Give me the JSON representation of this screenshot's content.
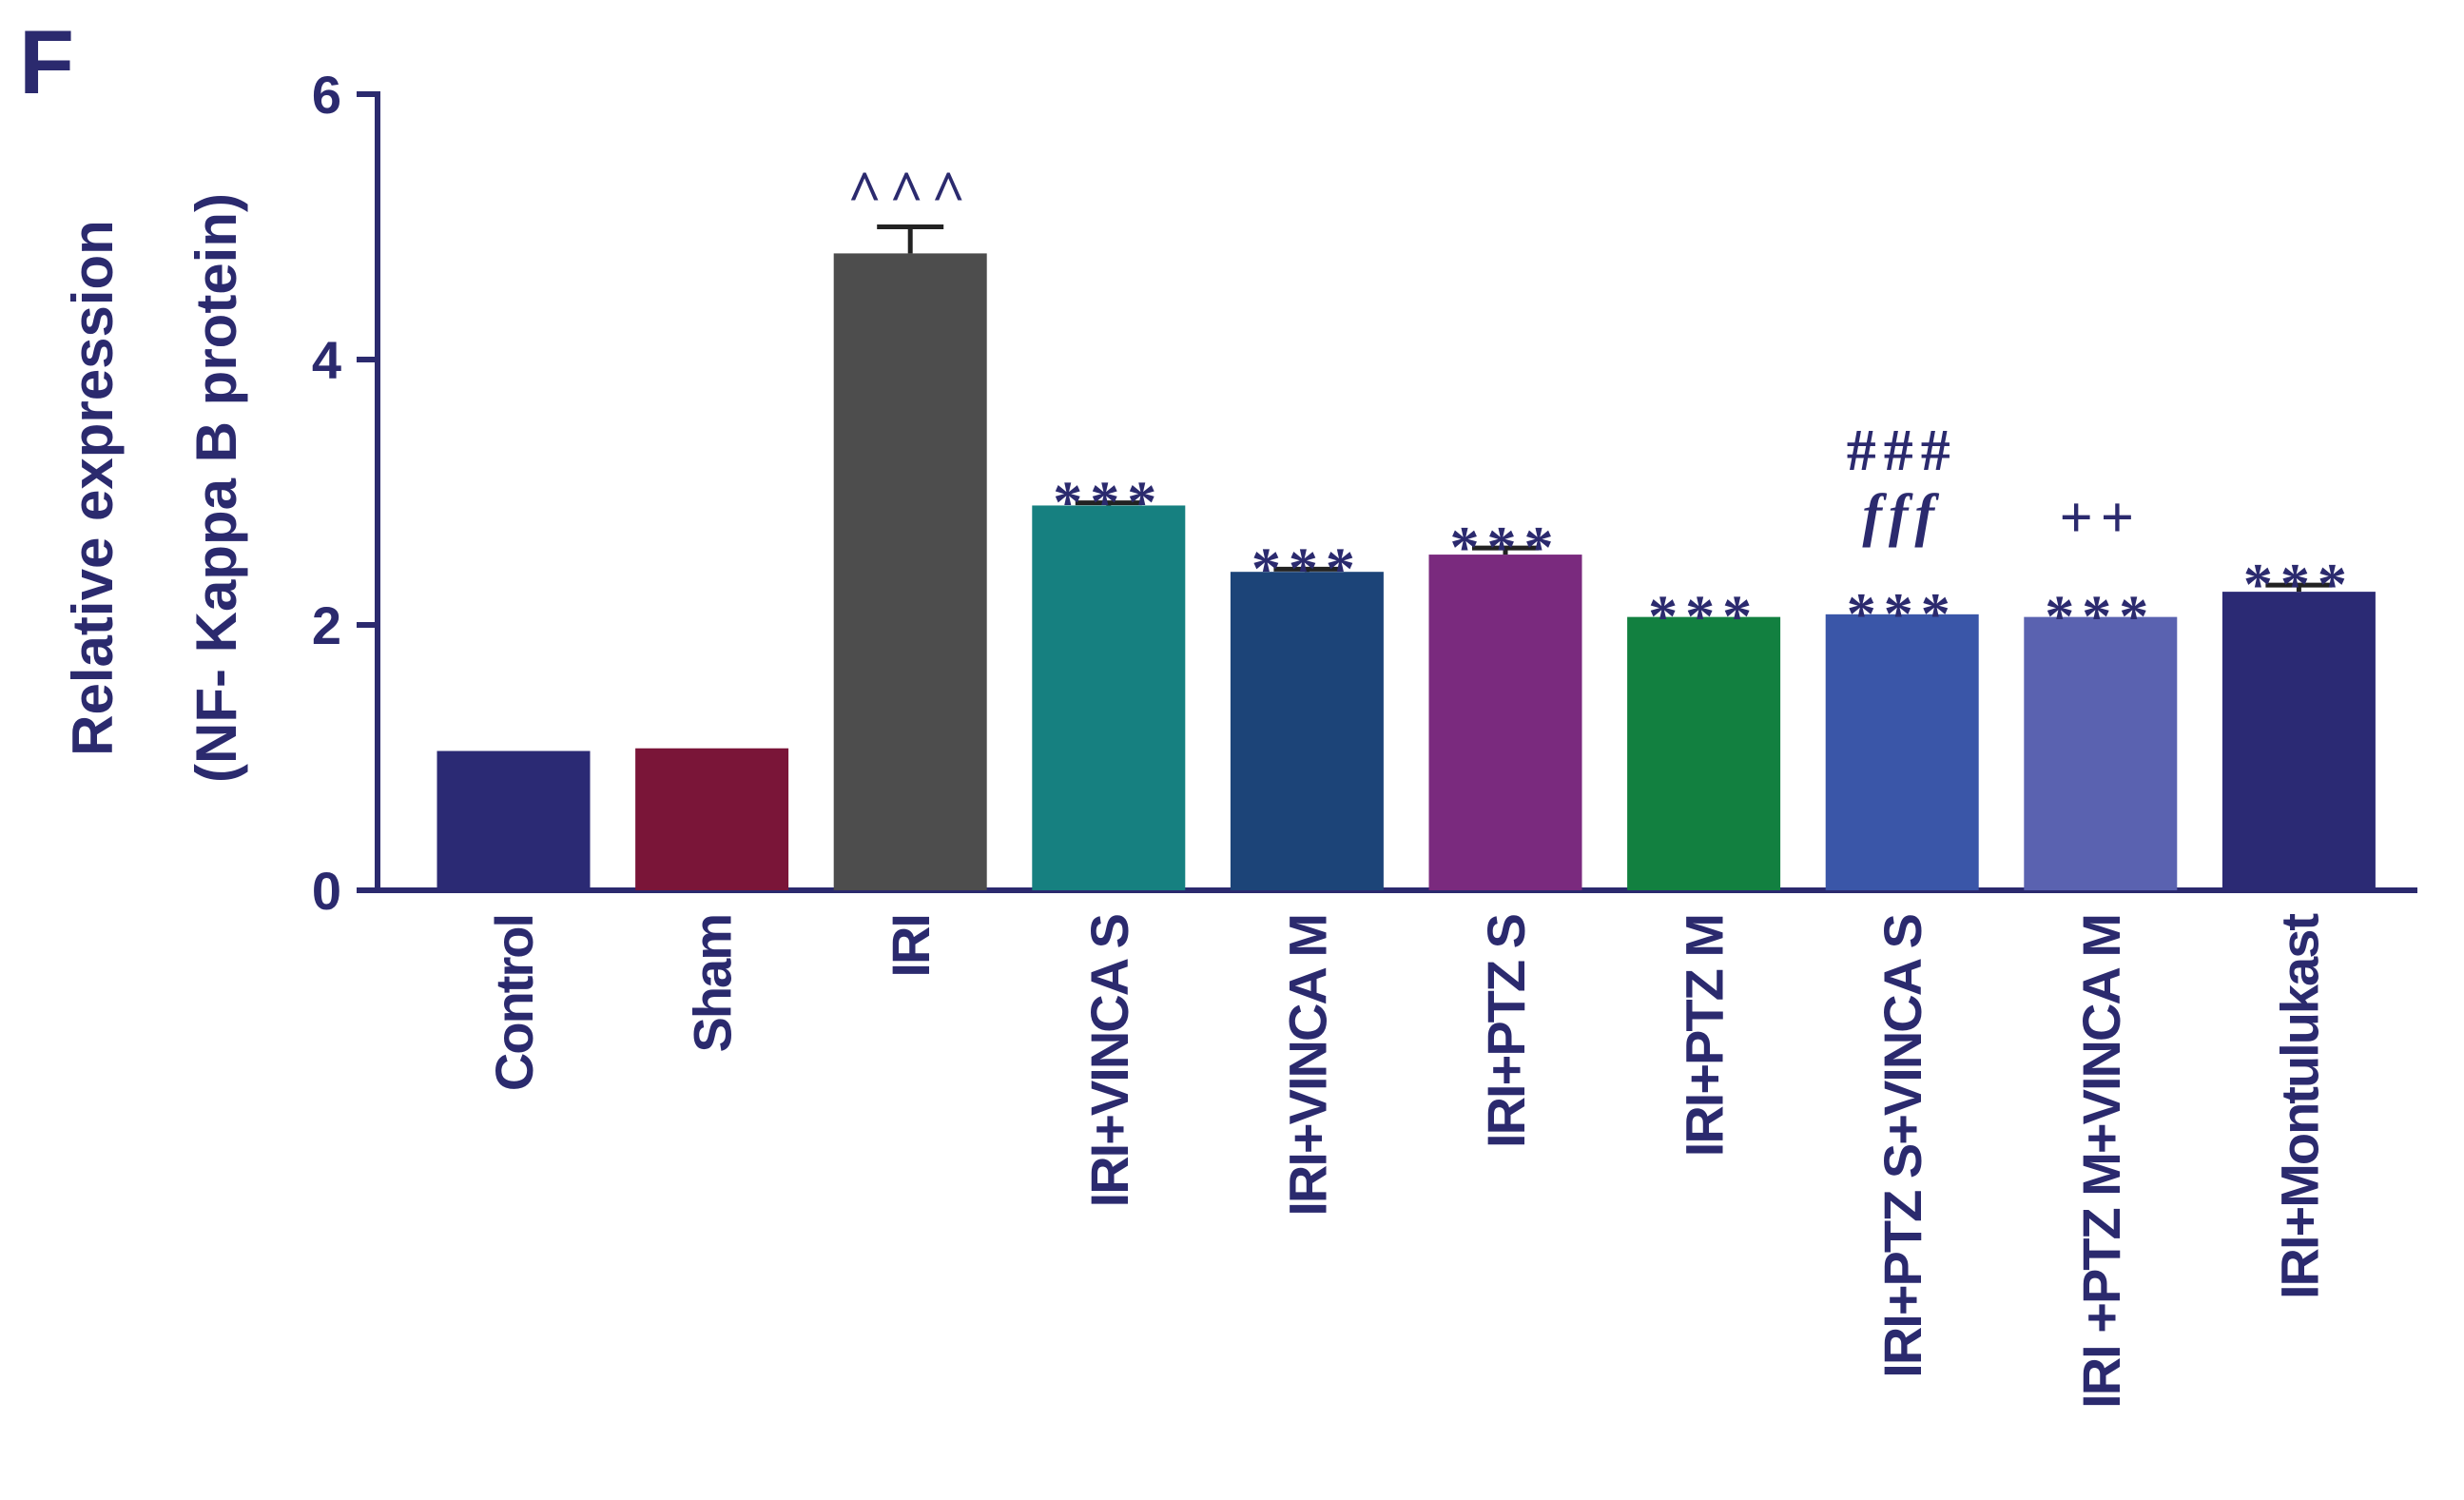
{
  "chart_data": {
    "type": "bar",
    "panel": "F",
    "ylabel": [
      "Relative expression",
      "(NF- Kappa B protein)"
    ],
    "categories": [
      "Control",
      "Sham",
      "IRI",
      "IRI+VINCA S",
      "IRI+VINCA M",
      "IRI+PTZ S",
      "IRI+PTZ M",
      "IRI+PTZ S+VINCA S",
      "IRI +PTZ M+VINCA M",
      "IRI+Montulukast"
    ],
    "values": [
      1.05,
      1.07,
      4.8,
      2.9,
      2.4,
      2.53,
      2.06,
      2.08,
      2.06,
      2.25
    ],
    "errors": [
      null,
      null,
      0.2,
      0.02,
      0.02,
      0.05,
      null,
      null,
      null,
      0.05
    ],
    "colors": [
      "#2b2a74",
      "#7a1538",
      "#4d4d4d",
      "#168080",
      "#1c4478",
      "#7a2a7e",
      "#128040",
      "#3a56a8",
      "#5a62b0",
      "#2b2a74"
    ],
    "annotations": [
      [],
      [],
      [
        "^^^"
      ],
      [
        "***"
      ],
      [
        "***"
      ],
      [
        "***"
      ],
      [
        "***"
      ],
      [
        "###",
        "fff",
        "***"
      ],
      [
        "++",
        "***"
      ],
      [
        "***"
      ]
    ],
    "ylim": [
      0,
      6
    ],
    "yticks": [
      0,
      2,
      4,
      6
    ]
  }
}
